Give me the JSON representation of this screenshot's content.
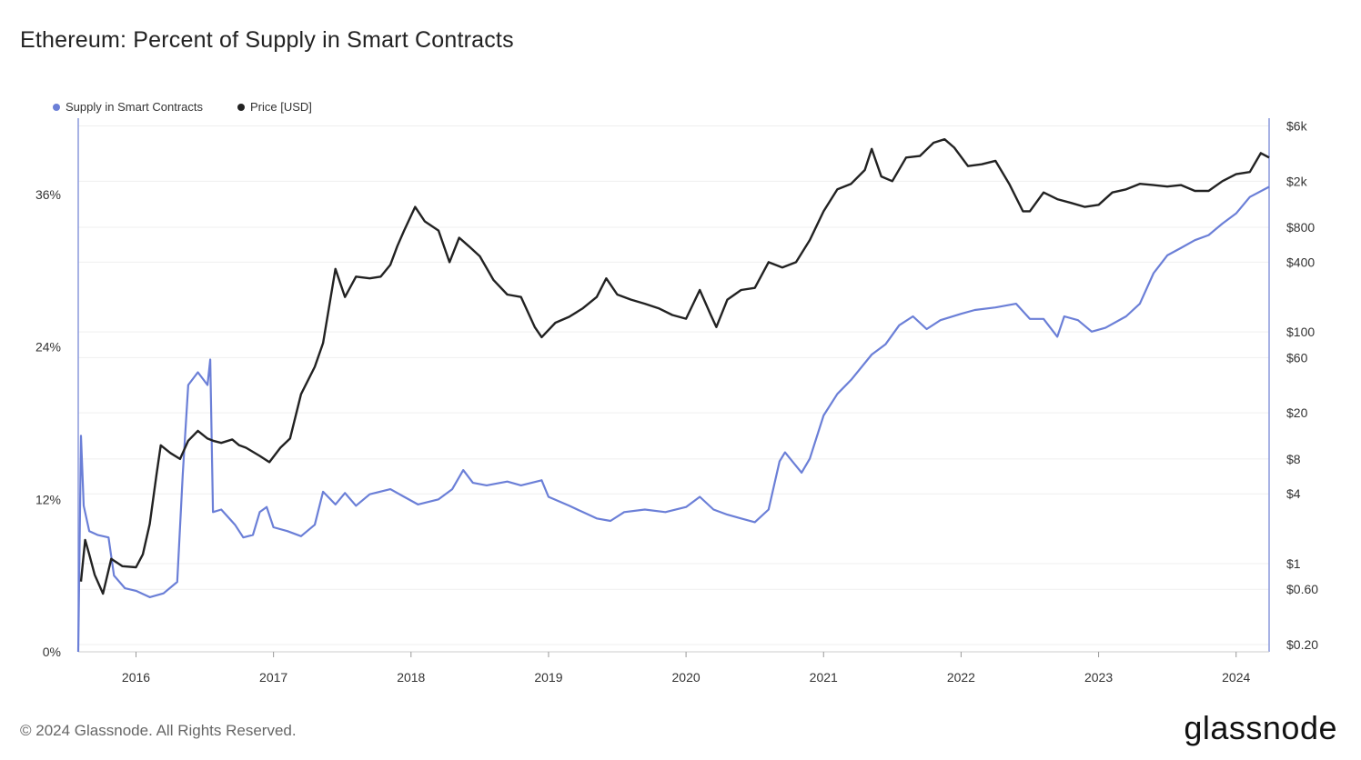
{
  "chart_data": {
    "type": "line",
    "title": "Ethereum: Percent of Supply in Smart Contracts",
    "legend": [
      {
        "name": "Supply in Smart Contracts",
        "color": "#6b7fd7"
      },
      {
        "name": "Price [USD]",
        "color": "#222222"
      }
    ],
    "x_ticks": [
      "2016",
      "2017",
      "2018",
      "2019",
      "2020",
      "2021",
      "2022",
      "2023",
      "2024"
    ],
    "x_range": [
      2015.58,
      2024.24
    ],
    "left_axis": {
      "ticks": [
        "0%",
        "12%",
        "24%",
        "36%"
      ],
      "tick_values": [
        0,
        12,
        24,
        36
      ],
      "ylim": [
        0,
        42
      ]
    },
    "right_axis": {
      "scale": "log",
      "ticks": [
        "$0.20",
        "$0.60",
        "$1",
        "$4",
        "$8",
        "$20",
        "$60",
        "$100",
        "$400",
        "$800",
        "$2k",
        "$6k"
      ],
      "tick_values": [
        0.2,
        0.6,
        1,
        4,
        8,
        20,
        60,
        100,
        400,
        800,
        2000,
        6000
      ],
      "ylim": [
        0.2,
        7000
      ]
    },
    "series": [
      {
        "name": "Supply in Smart Contracts",
        "axis": "left",
        "color": "#6b7fd7",
        "points": [
          [
            2015.58,
            0
          ],
          [
            2015.6,
            17
          ],
          [
            2015.62,
            11.5
          ],
          [
            2015.66,
            9.5
          ],
          [
            2015.72,
            9.2
          ],
          [
            2015.8,
            9
          ],
          [
            2015.84,
            6
          ],
          [
            2015.92,
            5
          ],
          [
            2016.0,
            4.8
          ],
          [
            2016.1,
            4.3
          ],
          [
            2016.2,
            4.6
          ],
          [
            2016.3,
            5.5
          ],
          [
            2016.34,
            14
          ],
          [
            2016.38,
            21
          ],
          [
            2016.45,
            22
          ],
          [
            2016.52,
            21
          ],
          [
            2016.54,
            23
          ],
          [
            2016.56,
            11
          ],
          [
            2016.62,
            11.2
          ],
          [
            2016.72,
            10
          ],
          [
            2016.78,
            9
          ],
          [
            2016.85,
            9.2
          ],
          [
            2016.9,
            11
          ],
          [
            2016.95,
            11.4
          ],
          [
            2017.0,
            9.8
          ],
          [
            2017.1,
            9.5
          ],
          [
            2017.2,
            9.1
          ],
          [
            2017.3,
            10
          ],
          [
            2017.36,
            12.6
          ],
          [
            2017.45,
            11.6
          ],
          [
            2017.52,
            12.5
          ],
          [
            2017.6,
            11.5
          ],
          [
            2017.7,
            12.4
          ],
          [
            2017.85,
            12.8
          ],
          [
            2017.95,
            12.2
          ],
          [
            2018.05,
            11.6
          ],
          [
            2018.2,
            12
          ],
          [
            2018.3,
            12.8
          ],
          [
            2018.38,
            14.3
          ],
          [
            2018.45,
            13.3
          ],
          [
            2018.55,
            13.1
          ],
          [
            2018.7,
            13.4
          ],
          [
            2018.8,
            13.1
          ],
          [
            2018.95,
            13.5
          ],
          [
            2019.0,
            12.2
          ],
          [
            2019.15,
            11.5
          ],
          [
            2019.25,
            11
          ],
          [
            2019.35,
            10.5
          ],
          [
            2019.45,
            10.3
          ],
          [
            2019.55,
            11
          ],
          [
            2019.7,
            11.2
          ],
          [
            2019.85,
            11
          ],
          [
            2020.0,
            11.4
          ],
          [
            2020.1,
            12.2
          ],
          [
            2020.2,
            11.2
          ],
          [
            2020.3,
            10.8
          ],
          [
            2020.4,
            10.5
          ],
          [
            2020.5,
            10.2
          ],
          [
            2020.6,
            11.2
          ],
          [
            2020.68,
            15
          ],
          [
            2020.72,
            15.7
          ],
          [
            2020.78,
            14.9
          ],
          [
            2020.84,
            14.1
          ],
          [
            2020.9,
            15.2
          ],
          [
            2021.0,
            18.6
          ],
          [
            2021.1,
            20.3
          ],
          [
            2021.2,
            21.4
          ],
          [
            2021.35,
            23.4
          ],
          [
            2021.45,
            24.2
          ],
          [
            2021.55,
            25.7
          ],
          [
            2021.65,
            26.4
          ],
          [
            2021.75,
            25.4
          ],
          [
            2021.85,
            26.1
          ],
          [
            2022.0,
            26.6
          ],
          [
            2022.1,
            26.9
          ],
          [
            2022.25,
            27.1
          ],
          [
            2022.4,
            27.4
          ],
          [
            2022.5,
            26.2
          ],
          [
            2022.6,
            26.2
          ],
          [
            2022.7,
            24.8
          ],
          [
            2022.75,
            26.4
          ],
          [
            2022.85,
            26.1
          ],
          [
            2022.95,
            25.2
          ],
          [
            2023.05,
            25.5
          ],
          [
            2023.2,
            26.4
          ],
          [
            2023.3,
            27.4
          ],
          [
            2023.4,
            29.8
          ],
          [
            2023.5,
            31.2
          ],
          [
            2023.6,
            31.8
          ],
          [
            2023.7,
            32.4
          ],
          [
            2023.8,
            32.8
          ],
          [
            2023.9,
            33.7
          ],
          [
            2024.0,
            34.5
          ],
          [
            2024.1,
            35.8
          ],
          [
            2024.24,
            36.6
          ]
        ]
      },
      {
        "name": "Price [USD]",
        "axis": "right",
        "color": "#222222",
        "points": [
          [
            2015.6,
            0.7
          ],
          [
            2015.63,
            1.6
          ],
          [
            2015.66,
            1.2
          ],
          [
            2015.7,
            0.8
          ],
          [
            2015.76,
            0.55
          ],
          [
            2015.82,
            1.1
          ],
          [
            2015.9,
            0.95
          ],
          [
            2016.0,
            0.93
          ],
          [
            2016.05,
            1.2
          ],
          [
            2016.1,
            2.2
          ],
          [
            2016.15,
            6
          ],
          [
            2016.18,
            10.5
          ],
          [
            2016.25,
            9
          ],
          [
            2016.32,
            8
          ],
          [
            2016.38,
            11.5
          ],
          [
            2016.45,
            14
          ],
          [
            2016.52,
            12
          ],
          [
            2016.56,
            11.5
          ],
          [
            2016.62,
            11
          ],
          [
            2016.7,
            11.8
          ],
          [
            2016.75,
            10.5
          ],
          [
            2016.8,
            10
          ],
          [
            2016.9,
            8.5
          ],
          [
            2016.97,
            7.5
          ],
          [
            2017.05,
            10
          ],
          [
            2017.12,
            12
          ],
          [
            2017.2,
            29
          ],
          [
            2017.3,
            50
          ],
          [
            2017.36,
            80
          ],
          [
            2017.45,
            350
          ],
          [
            2017.52,
            200
          ],
          [
            2017.6,
            300
          ],
          [
            2017.7,
            290
          ],
          [
            2017.78,
            300
          ],
          [
            2017.85,
            380
          ],
          [
            2017.9,
            550
          ],
          [
            2017.95,
            750
          ],
          [
            2018.03,
            1200
          ],
          [
            2018.1,
            900
          ],
          [
            2018.2,
            750
          ],
          [
            2018.28,
            400
          ],
          [
            2018.35,
            650
          ],
          [
            2018.42,
            550
          ],
          [
            2018.5,
            450
          ],
          [
            2018.6,
            280
          ],
          [
            2018.7,
            210
          ],
          [
            2018.8,
            200
          ],
          [
            2018.9,
            110
          ],
          [
            2018.95,
            90
          ],
          [
            2019.05,
            120
          ],
          [
            2019.15,
            135
          ],
          [
            2019.25,
            160
          ],
          [
            2019.35,
            200
          ],
          [
            2019.42,
            290
          ],
          [
            2019.5,
            210
          ],
          [
            2019.6,
            190
          ],
          [
            2019.7,
            175
          ],
          [
            2019.8,
            160
          ],
          [
            2019.9,
            140
          ],
          [
            2020.0,
            130
          ],
          [
            2020.1,
            230
          ],
          [
            2020.18,
            140
          ],
          [
            2020.22,
            110
          ],
          [
            2020.3,
            190
          ],
          [
            2020.4,
            230
          ],
          [
            2020.5,
            240
          ],
          [
            2020.6,
            400
          ],
          [
            2020.7,
            360
          ],
          [
            2020.8,
            400
          ],
          [
            2020.9,
            620
          ],
          [
            2021.0,
            1100
          ],
          [
            2021.1,
            1700
          ],
          [
            2021.2,
            1900
          ],
          [
            2021.3,
            2500
          ],
          [
            2021.35,
            3800
          ],
          [
            2021.42,
            2200
          ],
          [
            2021.5,
            2000
          ],
          [
            2021.6,
            3200
          ],
          [
            2021.7,
            3300
          ],
          [
            2021.8,
            4300
          ],
          [
            2021.88,
            4600
          ],
          [
            2021.95,
            3900
          ],
          [
            2022.05,
            2700
          ],
          [
            2022.15,
            2800
          ],
          [
            2022.25,
            3000
          ],
          [
            2022.35,
            1900
          ],
          [
            2022.45,
            1100
          ],
          [
            2022.5,
            1100
          ],
          [
            2022.6,
            1600
          ],
          [
            2022.7,
            1400
          ],
          [
            2022.8,
            1300
          ],
          [
            2022.9,
            1200
          ],
          [
            2023.0,
            1250
          ],
          [
            2023.1,
            1600
          ],
          [
            2023.2,
            1700
          ],
          [
            2023.3,
            1900
          ],
          [
            2023.4,
            1850
          ],
          [
            2023.5,
            1800
          ],
          [
            2023.6,
            1850
          ],
          [
            2023.7,
            1650
          ],
          [
            2023.8,
            1650
          ],
          [
            2023.9,
            2000
          ],
          [
            2024.0,
            2300
          ],
          [
            2024.1,
            2400
          ],
          [
            2024.18,
            3500
          ],
          [
            2024.24,
            3200
          ]
        ]
      }
    ]
  },
  "footer": {
    "copyright": "© 2024 Glassnode. All Rights Reserved.",
    "logo": "glassnode"
  }
}
